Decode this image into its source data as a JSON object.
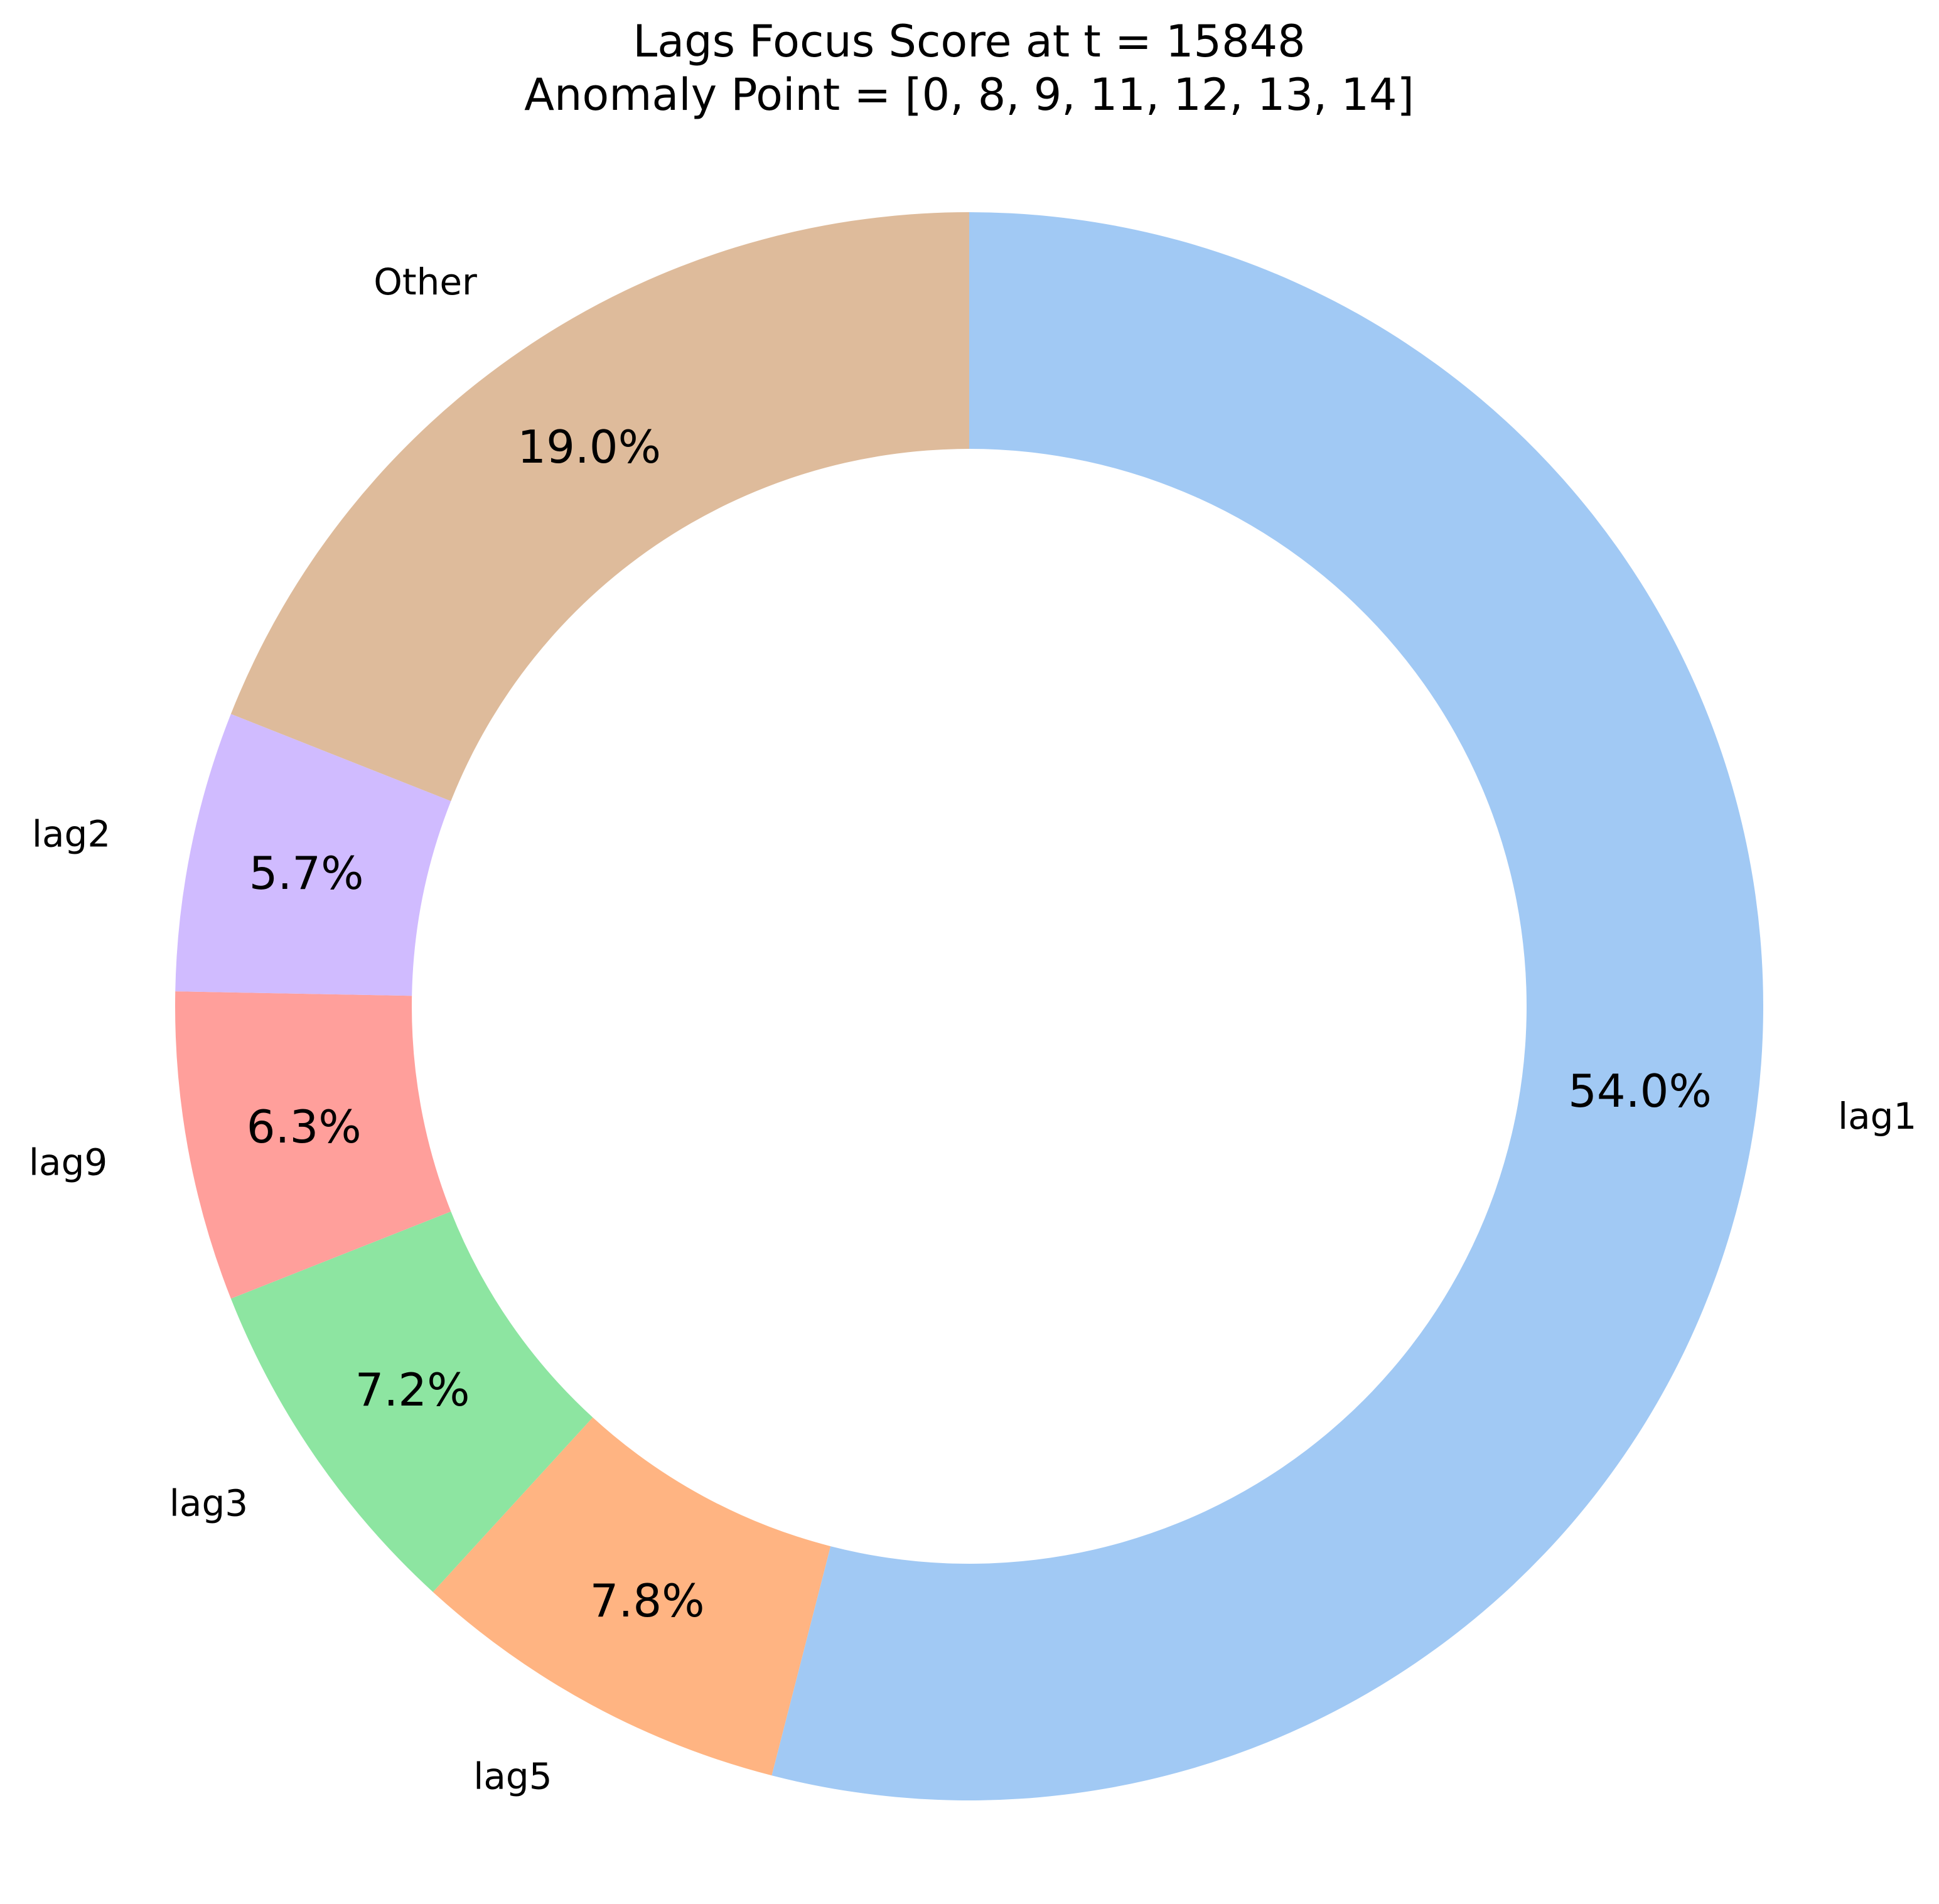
{
  "chart_data": {
    "type": "pie",
    "style": "donut",
    "title": "Lags Focus Score at t = 15848",
    "subtitle": "Anomaly Point = [0, 8, 9, 11, 12, 13, 14]",
    "start": "top",
    "direction": "clockwise",
    "slices": [
      {
        "label": "lag1",
        "value": 54.0,
        "pct_label": "54.0%",
        "color": "#a1c9f4"
      },
      {
        "label": "lag5",
        "value": 7.8,
        "pct_label": "7.8%",
        "color": "#ffb482"
      },
      {
        "label": "lag3",
        "value": 7.2,
        "pct_label": "7.2%",
        "color": "#8de5a1"
      },
      {
        "label": "lag9",
        "value": 6.3,
        "pct_label": "6.3%",
        "color": "#ff9f9b"
      },
      {
        "label": "lag2",
        "value": 5.7,
        "pct_label": "5.7%",
        "color": "#d0bbff"
      },
      {
        "label": "Other",
        "value": 19.0,
        "pct_label": "19.0%",
        "color": "#debb9b"
      }
    ]
  }
}
